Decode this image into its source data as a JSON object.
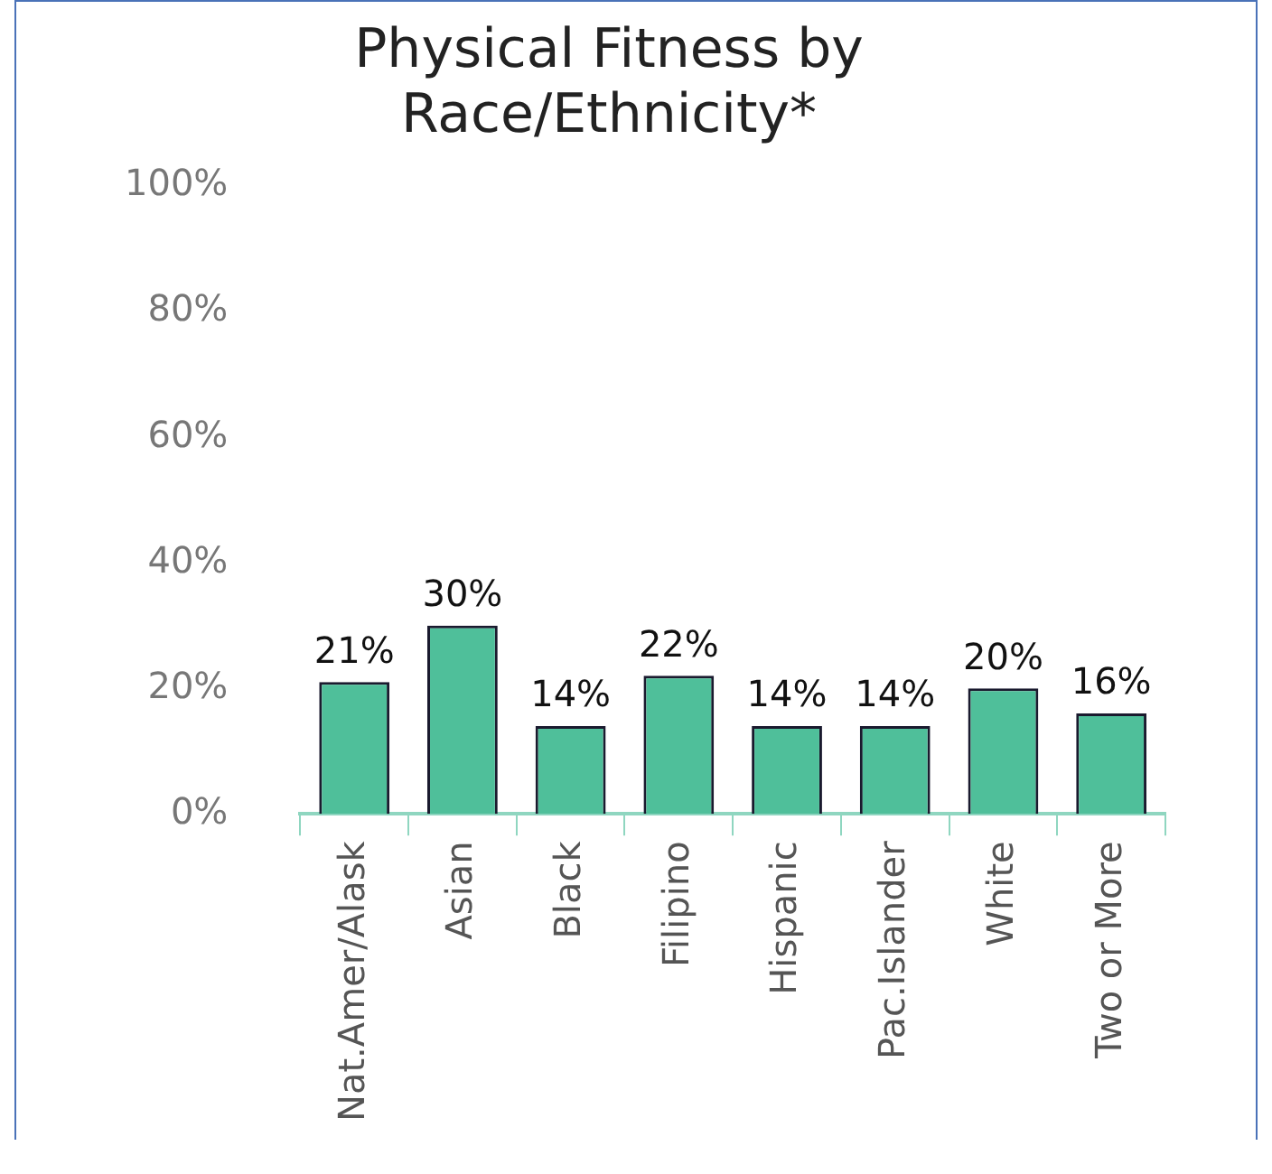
{
  "chart_data": {
    "type": "bar",
    "title": "Physical Fitness by\nRace/Ethnicity*",
    "categories": [
      "Nat.Amer/Alask",
      "Asian",
      "Black",
      "Filipino",
      "Hispanic",
      "Pac.Islander",
      "White",
      "Two or More"
    ],
    "values": [
      21,
      30,
      14,
      22,
      14,
      14,
      20,
      16
    ],
    "value_labels": [
      "21%",
      "30%",
      "14%",
      "22%",
      "14%",
      "14%",
      "20%",
      "16%"
    ],
    "color": "#4fbf9a",
    "ylim": [
      0,
      100
    ],
    "yticks": [
      {
        "value": 0,
        "label": "0%"
      },
      {
        "value": 20,
        "label": "20%"
      },
      {
        "value": 40,
        "label": "40%"
      },
      {
        "value": 60,
        "label": "60%"
      },
      {
        "value": 80,
        "label": "80%"
      },
      {
        "value": 100,
        "label": "100%"
      }
    ],
    "grid": false,
    "legend": false
  }
}
